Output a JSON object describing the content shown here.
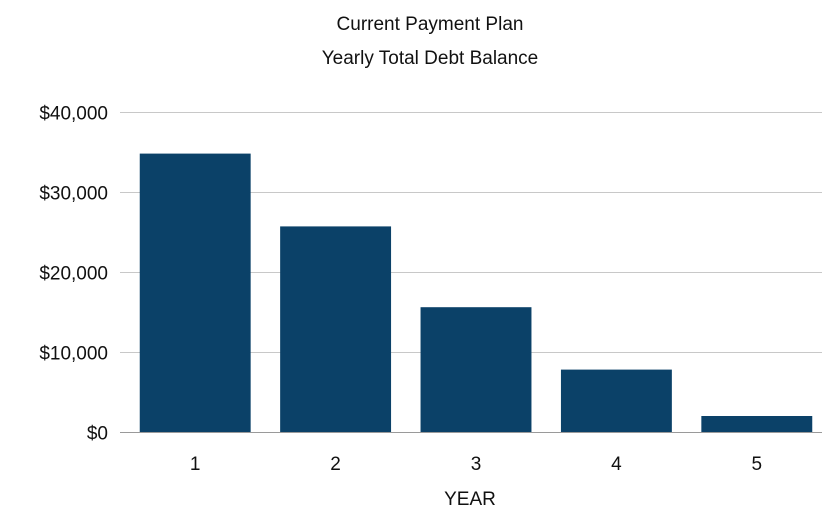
{
  "chart_data": {
    "type": "bar",
    "title": "Current Payment Plan",
    "subtitle": "Yearly Total Debt Balance",
    "xlabel": "YEAR",
    "ylabel": "",
    "categories": [
      "1",
      "2",
      "3",
      "4",
      "5"
    ],
    "values": [
      34800,
      25700,
      15600,
      7800,
      2000
    ],
    "ylim": [
      0,
      40000
    ],
    "yticks": [
      0,
      10000,
      20000,
      30000,
      40000
    ],
    "ytick_labels": [
      "$0",
      "$10,000",
      "$20,000",
      "$30,000",
      "$40,000"
    ],
    "grid": true,
    "legend": "none",
    "bar_color": "#0b4168"
  }
}
